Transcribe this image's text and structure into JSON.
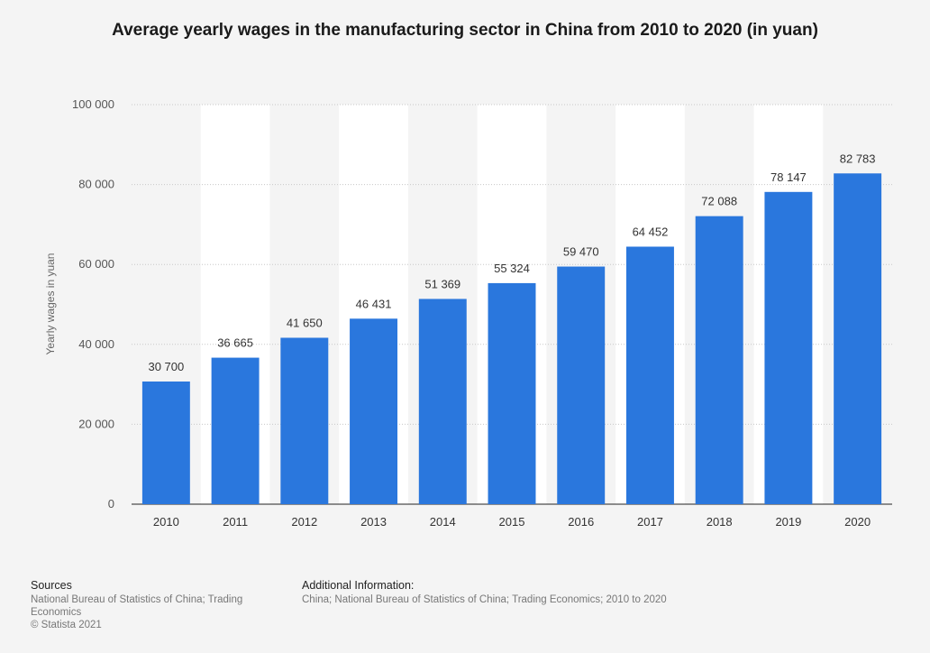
{
  "chart_data": {
    "type": "bar",
    "title": "Average yearly wages in the manufacturing sector in China from 2010 to 2020 (in yuan)",
    "xlabel": "",
    "ylabel": "Yearly wages in yuan",
    "ylim": [
      0,
      100000
    ],
    "yticks": [
      0,
      20000,
      40000,
      60000,
      80000,
      100000
    ],
    "ytick_labels": [
      "0",
      "20 000",
      "40 000",
      "60 000",
      "80 000",
      "100 000"
    ],
    "categories": [
      "2010",
      "2011",
      "2012",
      "2013",
      "2014",
      "2015",
      "2016",
      "2017",
      "2018",
      "2019",
      "2020"
    ],
    "values": [
      30700,
      36665,
      41650,
      46431,
      51369,
      55324,
      59470,
      64452,
      72088,
      78147,
      82783
    ],
    "value_labels": [
      "30 700",
      "36 665",
      "41 650",
      "46 431",
      "51 369",
      "55 324",
      "59 470",
      "64 452",
      "72 088",
      "78 147",
      "82 783"
    ],
    "grid": true,
    "colors": {
      "bar": "#2a77dd",
      "band": "#ffffff",
      "background": "#f4f4f4"
    }
  },
  "footer": {
    "sources_heading": "Sources",
    "sources_text": "National Bureau of Statistics of China; Trading Economics",
    "copyright": "© Statista 2021",
    "additional_heading": "Additional Information:",
    "additional_text": "China; National Bureau of Statistics of China; Trading Economics; 2010 to 2020"
  }
}
